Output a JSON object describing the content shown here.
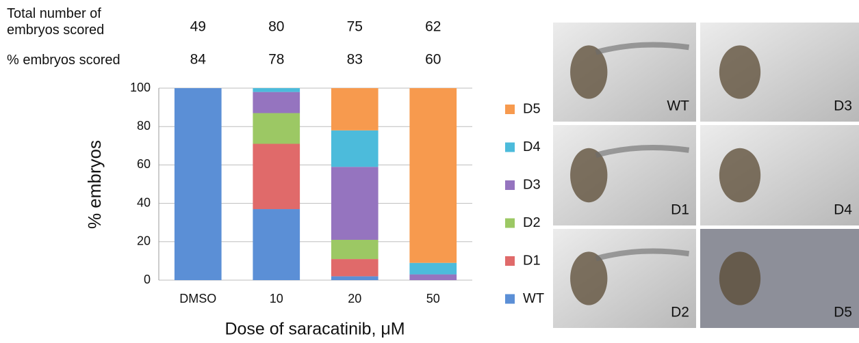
{
  "chart_data": {
    "type": "stacked_bar",
    "ylabel": "% embryos",
    "xlabel": "Dose of saracatinib, μM",
    "categories": [
      "DMSO",
      "10",
      "20",
      "50"
    ],
    "annotations": [
      {
        "label": "Total number of embryos scored",
        "values": [
          49,
          80,
          75,
          62
        ]
      },
      {
        "label": "% embryos scored",
        "values": [
          84,
          78,
          83,
          60
        ]
      }
    ],
    "series": [
      {
        "name": "WT",
        "color": "#5b8fd6",
        "values": [
          100,
          37,
          2,
          0
        ]
      },
      {
        "name": "D1",
        "color": "#e06a6a",
        "values": [
          0,
          34,
          9,
          0
        ]
      },
      {
        "name": "D2",
        "color": "#9cc864",
        "values": [
          0,
          16,
          10,
          0
        ]
      },
      {
        "name": "D3",
        "color": "#9574bf",
        "values": [
          0,
          11,
          38,
          3
        ]
      },
      {
        "name": "D4",
        "color": "#4cbbdb",
        "values": [
          0,
          2,
          19,
          6
        ]
      },
      {
        "name": "D5",
        "color": "#f79a4e",
        "values": [
          0,
          0,
          22,
          91
        ]
      }
    ],
    "ylim": [
      0,
      100
    ],
    "yticks": [
      0,
      20,
      40,
      60,
      80,
      100
    ],
    "grid": true
  },
  "panels": [
    "WT",
    "D3",
    "D1",
    "D4",
    "D2",
    "D5"
  ]
}
